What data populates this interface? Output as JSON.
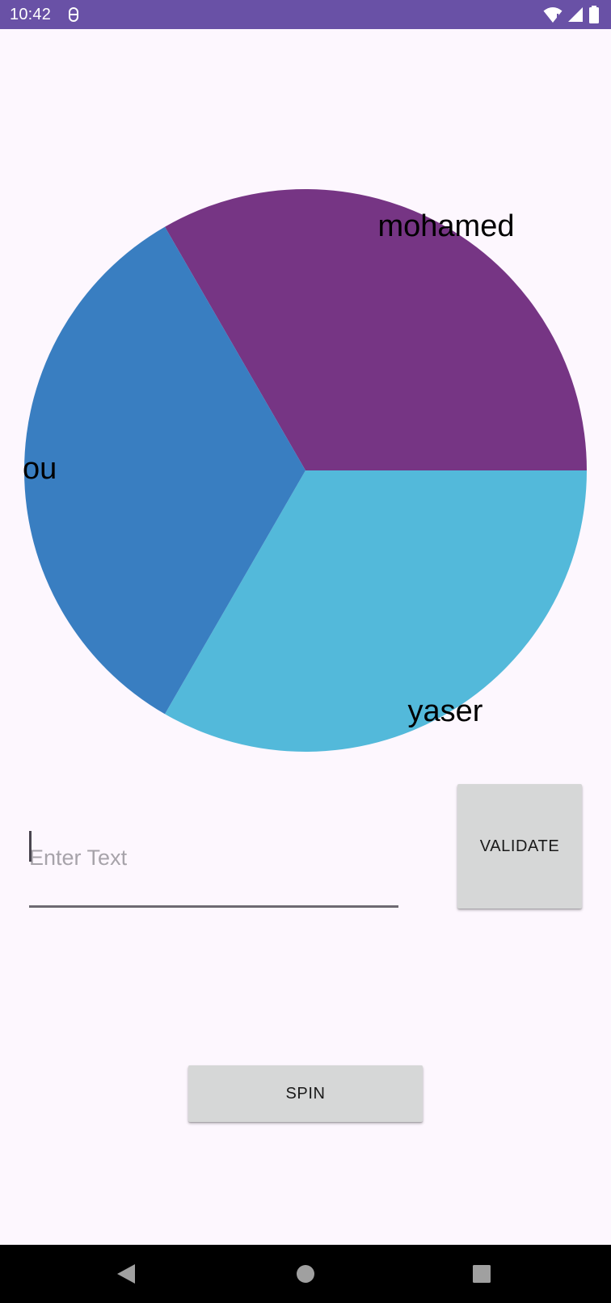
{
  "status_bar": {
    "time": "10:42",
    "background": "#6951A6",
    "notification_icon": "vpn-key-icon",
    "right_icons": [
      "wifi-icon",
      "cell-signal-icon",
      "battery-icon"
    ]
  },
  "wheel": {
    "segments": [
      {
        "label": "mohamed",
        "color": "#763584",
        "start_deg": -120,
        "end_deg": 0
      },
      {
        "label": "yaser",
        "color": "#53B9DA",
        "start_deg": 0,
        "end_deg": 120
      },
      {
        "label": "ou",
        "color": "#397EC1",
        "start_deg": 120,
        "end_deg": 240
      }
    ]
  },
  "input": {
    "placeholder": "Enter Text",
    "value": ""
  },
  "buttons": {
    "validate": "VALIDATE",
    "spin": "SPIN"
  },
  "nav_bar": {
    "icons": [
      "back-icon",
      "home-icon",
      "recents-icon"
    ]
  }
}
